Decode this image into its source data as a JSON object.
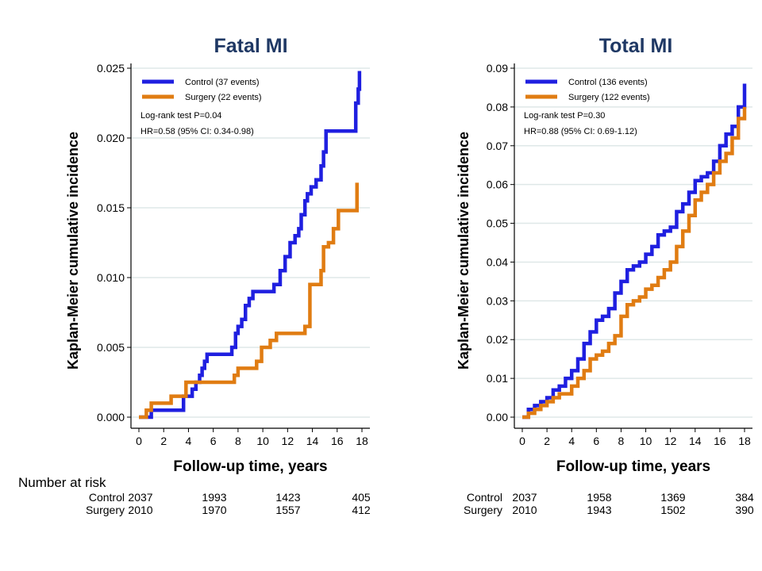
{
  "colors": {
    "control": "#1f1fe0",
    "surgery": "#e07c12",
    "grid": "#dfe8e8",
    "title": "#1f3864"
  },
  "risk_table": {
    "heading": "Number at risk",
    "left": {
      "rows": [
        {
          "label": "Control",
          "values": [
            "2037",
            "1993",
            "1423",
            "405"
          ]
        },
        {
          "label": "Surgery",
          "values": [
            "2010",
            "1970",
            "1557",
            "412"
          ]
        }
      ]
    },
    "right": {
      "rows": [
        {
          "label": "Control",
          "values": [
            "2037",
            "1958",
            "1369",
            "384"
          ]
        },
        {
          "label": "Surgery",
          "values": [
            "2010",
            "1943",
            "1502",
            "390"
          ]
        }
      ]
    }
  },
  "chart_data": [
    {
      "type": "line",
      "step": true,
      "title": "Fatal MI",
      "xlabel": "Follow-up time, years",
      "ylabel": "Kaplan-Meier cumulative incidence",
      "xlim": [
        0,
        18
      ],
      "ylim": [
        0,
        0.025
      ],
      "x_ticks": [
        0,
        2,
        4,
        6,
        8,
        10,
        12,
        14,
        16,
        18
      ],
      "y_ticks": [
        0,
        0.005,
        0.01,
        0.015,
        0.02,
        0.025
      ],
      "y_tick_labels": [
        "0.000",
        "0.005",
        "0.010",
        "0.015",
        "0.020",
        "0.025"
      ],
      "grid": true,
      "legend_position": "top-left",
      "annotations": [
        "Log-rank test P=0.04",
        "HR=0.58 (95% CI: 0.34-0.98)"
      ],
      "series": [
        {
          "name": "Control (37 events)",
          "color": "#1f1fe0",
          "x": [
            0,
            1.0,
            1.9,
            3.6,
            4.3,
            4.6,
            4.9,
            5.1,
            5.3,
            5.5,
            7.5,
            7.8,
            8.0,
            8.3,
            8.6,
            8.9,
            9.2,
            10.9,
            11.4,
            11.8,
            12.2,
            12.6,
            12.9,
            13.1,
            13.4,
            13.6,
            13.9,
            14.3,
            14.7,
            14.9,
            15.1,
            17.3,
            17.5,
            17.7,
            17.8
          ],
          "y": [
            0,
            0.0005,
            0.0005,
            0.0015,
            0.002,
            0.0025,
            0.003,
            0.0035,
            0.004,
            0.0045,
            0.005,
            0.006,
            0.0065,
            0.007,
            0.008,
            0.0085,
            0.009,
            0.0095,
            0.0105,
            0.0115,
            0.0125,
            0.013,
            0.0135,
            0.0145,
            0.0155,
            0.016,
            0.0165,
            0.017,
            0.018,
            0.019,
            0.0205,
            0.0205,
            0.0225,
            0.0235,
            0.0248
          ]
        },
        {
          "name": "Surgery (22 events)",
          "color": "#e07c12",
          "x": [
            0,
            0.6,
            1.0,
            2.6,
            3.8,
            7.7,
            8.0,
            9.5,
            9.9,
            10.6,
            11.1,
            13.4,
            13.8,
            14.7,
            14.9,
            15.3,
            15.7,
            16.1,
            17.6
          ],
          "y": [
            0,
            0.0005,
            0.001,
            0.0015,
            0.0025,
            0.003,
            0.0035,
            0.004,
            0.005,
            0.0055,
            0.006,
            0.0065,
            0.0095,
            0.0105,
            0.0122,
            0.0125,
            0.0135,
            0.0148,
            0.0168
          ]
        }
      ]
    },
    {
      "type": "line",
      "step": true,
      "title": "Total MI",
      "xlabel": "Follow-up time, years",
      "ylabel": "Kaplan-Meier cumulative incidence",
      "xlim": [
        0,
        18
      ],
      "ylim": [
        0,
        0.09
      ],
      "x_ticks": [
        0,
        2,
        4,
        6,
        8,
        10,
        12,
        14,
        16,
        18
      ],
      "y_ticks": [
        0,
        0.01,
        0.02,
        0.03,
        0.04,
        0.05,
        0.06,
        0.07,
        0.08,
        0.09
      ],
      "y_tick_labels": [
        "0.00",
        "0.01",
        "0.02",
        "0.03",
        "0.04",
        "0.05",
        "0.06",
        "0.07",
        "0.08",
        "0.09"
      ],
      "grid": true,
      "legend_position": "top-left",
      "annotations": [
        "Log-rank test P=0.30",
        "HR=0.88 (95% CI: 0.69-1.12)"
      ],
      "series": [
        {
          "name": "Control (136 events)",
          "color": "#1f1fe0",
          "x": [
            0,
            0.5,
            1.0,
            1.5,
            2.0,
            2.5,
            3.0,
            3.5,
            4.0,
            4.5,
            5.0,
            5.5,
            6.0,
            6.5,
            7.0,
            7.5,
            8.0,
            8.5,
            9.0,
            9.5,
            10.0,
            10.5,
            11.0,
            11.5,
            12.0,
            12.5,
            13.0,
            13.5,
            14.0,
            14.5,
            15.0,
            15.5,
            16.0,
            16.5,
            17.0,
            17.5,
            18.0
          ],
          "y": [
            0,
            0.002,
            0.003,
            0.004,
            0.005,
            0.007,
            0.008,
            0.01,
            0.012,
            0.015,
            0.019,
            0.022,
            0.025,
            0.026,
            0.028,
            0.032,
            0.035,
            0.038,
            0.039,
            0.04,
            0.042,
            0.044,
            0.047,
            0.048,
            0.049,
            0.053,
            0.055,
            0.058,
            0.061,
            0.062,
            0.063,
            0.066,
            0.07,
            0.073,
            0.075,
            0.08,
            0.086
          ]
        },
        {
          "name": "Surgery (122 events)",
          "color": "#e07c12",
          "x": [
            0,
            0.5,
            1.0,
            1.5,
            2.0,
            2.5,
            3.0,
            3.5,
            4.0,
            4.5,
            5.0,
            5.5,
            6.0,
            6.5,
            7.0,
            7.5,
            8.0,
            8.5,
            9.0,
            9.5,
            10.0,
            10.5,
            11.0,
            11.5,
            12.0,
            12.5,
            13.0,
            13.5,
            14.0,
            14.5,
            15.0,
            15.5,
            16.0,
            16.5,
            17.0,
            17.5,
            18.0
          ],
          "y": [
            0,
            0.001,
            0.002,
            0.003,
            0.004,
            0.005,
            0.006,
            0.006,
            0.008,
            0.01,
            0.012,
            0.015,
            0.016,
            0.017,
            0.019,
            0.021,
            0.026,
            0.029,
            0.03,
            0.031,
            0.033,
            0.034,
            0.036,
            0.038,
            0.04,
            0.044,
            0.048,
            0.052,
            0.056,
            0.058,
            0.06,
            0.063,
            0.066,
            0.068,
            0.072,
            0.077,
            0.08
          ]
        }
      ]
    }
  ]
}
